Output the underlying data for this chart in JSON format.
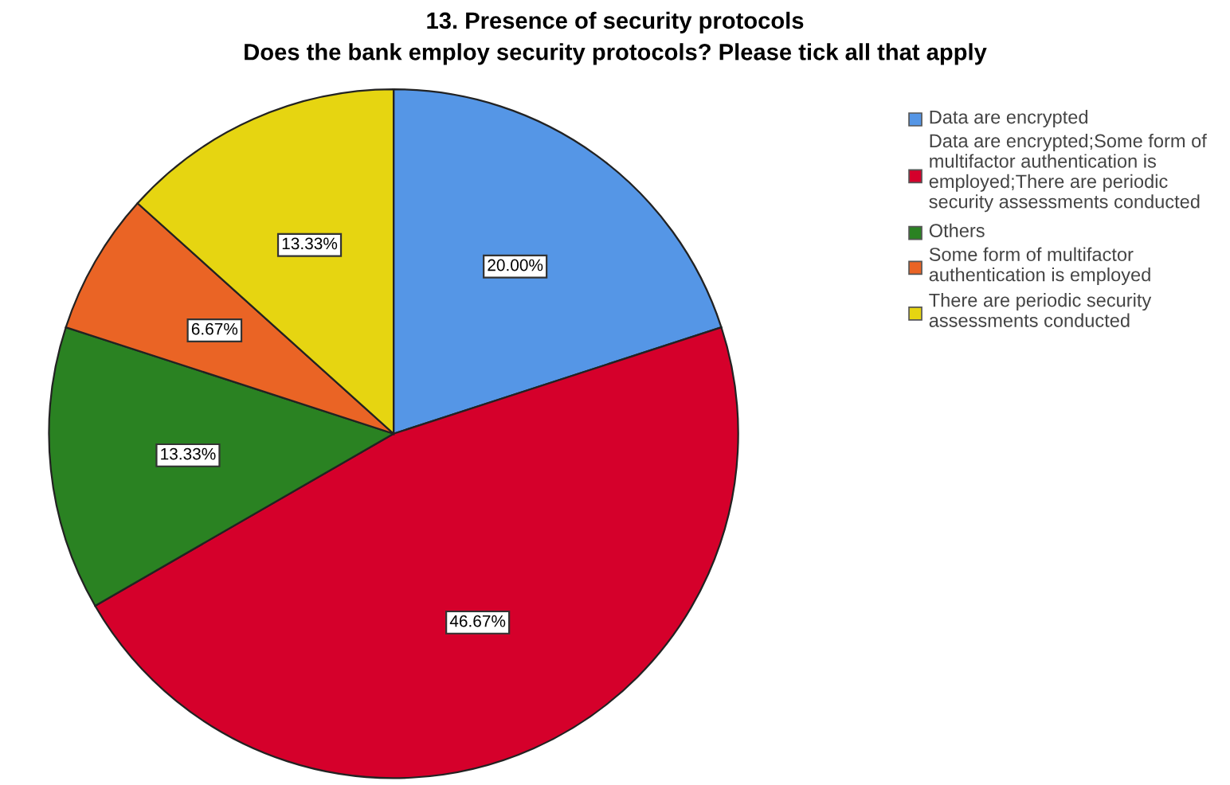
{
  "chart_data": {
    "type": "pie",
    "title": "13. Presence of security protocols",
    "subtitle": "Does the bank employ security protocols? Please tick all that apply",
    "categories": [
      "Data are encrypted",
      "Data are encrypted;Some form of multifactor authentication is employed;There are periodic security assessments conducted",
      "Others",
      "Some form of multifactor authentication is employed",
      "There are periodic security assessments conducted"
    ],
    "values": [
      20.0,
      46.67,
      13.33,
      6.67,
      13.33
    ],
    "value_labels": [
      "20.00%",
      "46.67%",
      "13.33%",
      "6.67%",
      "13.33%"
    ],
    "colors": [
      "#5596e6",
      "#d5002b",
      "#2a8222",
      "#ea6425",
      "#e6d511"
    ],
    "legend": "top right"
  }
}
